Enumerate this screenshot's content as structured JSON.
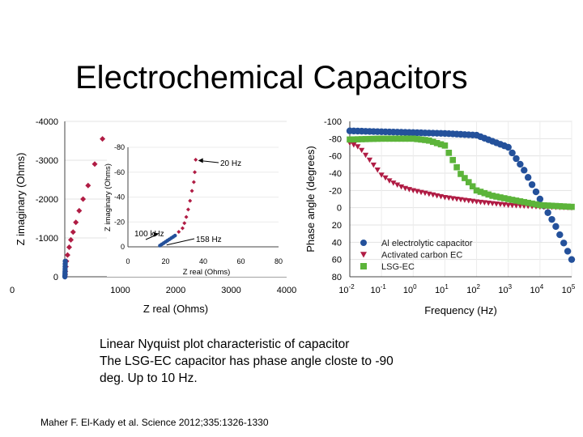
{
  "slide": {
    "title": "Electrochemical Capacitors",
    "caption_lines": [
      "Linear Nyquist plot characteristic of capacitor",
      "The LSG-EC capacitor has phase angle closte to -90",
      "deg. Up to 10 Hz."
    ],
    "citation": "Maher F. El-Kady et al. Science 2012;335:1326-1330"
  },
  "colors": {
    "blue": "#24519b",
    "red": "#b01c44",
    "green": "#5cb43a",
    "axis": "#444444"
  },
  "chart_data": [
    {
      "id": "nyquist",
      "type": "scatter",
      "title": "",
      "xlabel": "Z real (Ohms)",
      "ylabel": "Z imaginary (Ohms)",
      "xlim": [
        0,
        4000
      ],
      "ylim": [
        0,
        -4000
      ],
      "xticks": [
        "0",
        "1000",
        "2000",
        "3000",
        "4000"
      ],
      "yticks": [
        "0",
        "-1000",
        "-2000",
        "-3000",
        "-4000"
      ],
      "series": [
        {
          "name": "Activated carbon EC",
          "points": [
            [
              5,
              0
            ],
            [
              8,
              -60
            ],
            [
              12,
              -140
            ],
            [
              20,
              -260
            ],
            [
              30,
              -400
            ],
            [
              50,
              -560
            ],
            [
              80,
              -760
            ],
            [
              110,
              -950
            ],
            [
              150,
              -1150
            ],
            [
              200,
              -1400
            ],
            [
              260,
              -1700
            ],
            [
              330,
              -2000
            ],
            [
              420,
              -2350
            ],
            [
              540,
              -2900
            ],
            [
              680,
              -3550
            ]
          ]
        },
        {
          "name": "LSG-EC",
          "points": [
            [
              2,
              0
            ],
            [
              3,
              -40
            ],
            [
              4,
              -90
            ],
            [
              5,
              -140
            ],
            [
              6,
              -200
            ],
            [
              7,
              -260
            ],
            [
              8,
              -330
            ],
            [
              9,
              -400
            ]
          ]
        }
      ]
    },
    {
      "id": "nyquist-inset",
      "type": "scatter",
      "xlabel": "Z real (Ohms)",
      "ylabel": "Z imaginary (Ohms)",
      "xlim": [
        0,
        80
      ],
      "ylim": [
        0,
        -80
      ],
      "xticks": [
        "0",
        "20",
        "40",
        "60",
        "80"
      ],
      "yticks": [
        "0",
        "-20",
        "-40",
        "-60",
        "-80"
      ],
      "annotations": [
        {
          "text": "20 Hz",
          "x": 36,
          "y": -70
        },
        {
          "text": "100 kHz",
          "x": 17,
          "y": -10
        },
        {
          "text": "158 Hz",
          "x": 30,
          "y": -8
        }
      ],
      "series": [
        {
          "name": "Activated carbon EC",
          "points": [
            [
              19,
              -3
            ],
            [
              21,
              -5
            ],
            [
              23,
              -7
            ],
            [
              25,
              -9
            ],
            [
              27,
              -12
            ],
            [
              29,
              -15
            ],
            [
              30,
              -19
            ],
            [
              31,
              -24
            ],
            [
              32,
              -30
            ],
            [
              33,
              -37
            ],
            [
              34,
              -45
            ],
            [
              35,
              -52
            ],
            [
              35.5,
              -60
            ],
            [
              36,
              -70
            ]
          ]
        },
        {
          "name": "LSG-EC",
          "points": [
            [
              17,
              -1
            ],
            [
              18,
              -2
            ],
            [
              19,
              -3
            ],
            [
              20,
              -4
            ],
            [
              21,
              -5
            ],
            [
              22,
              -6
            ],
            [
              23,
              -7
            ],
            [
              24,
              -8
            ],
            [
              25,
              -9
            ]
          ]
        }
      ]
    },
    {
      "id": "bode-phase",
      "type": "line",
      "xlabel": "Frequency (Hz)",
      "ylabel": "Phase angle (degrees)",
      "xscale": "log",
      "xlim": [
        0.01,
        100000
      ],
      "ylim": [
        -100,
        80
      ],
      "xtick_exponents": [
        "-2",
        "-1",
        "0",
        "1",
        "2",
        "3",
        "4",
        "5"
      ],
      "yticks": [
        "-100",
        "-80",
        "-60",
        "-40",
        "-20",
        "0",
        "20",
        "40",
        "60",
        "80"
      ],
      "legend_position": "bottom-left",
      "series": [
        {
          "name": "Al electrolytic capacitor",
          "x": [
            0.01,
            0.1,
            1,
            10,
            100,
            1000,
            3000,
            10000,
            30000,
            100000
          ],
          "y": [
            -89,
            -88,
            -87,
            -86,
            -84,
            -70,
            -45,
            -10,
            20,
            60
          ]
        },
        {
          "name": "Activated carbon EC",
          "x": [
            0.01,
            0.02,
            0.05,
            0.1,
            0.2,
            0.5,
            1,
            10,
            100,
            1000,
            10000,
            100000
          ],
          "y": [
            -75,
            -70,
            -52,
            -38,
            -30,
            -23,
            -20,
            -12,
            -7,
            -3,
            -1,
            0
          ]
        },
        {
          "name": "LSG-EC",
          "x": [
            0.01,
            0.1,
            1,
            3,
            10,
            30,
            100,
            300,
            1000,
            10000,
            100000
          ],
          "y": [
            -79,
            -80,
            -80,
            -78,
            -72,
            -40,
            -20,
            -14,
            -10,
            -3,
            -1
          ]
        }
      ]
    }
  ]
}
